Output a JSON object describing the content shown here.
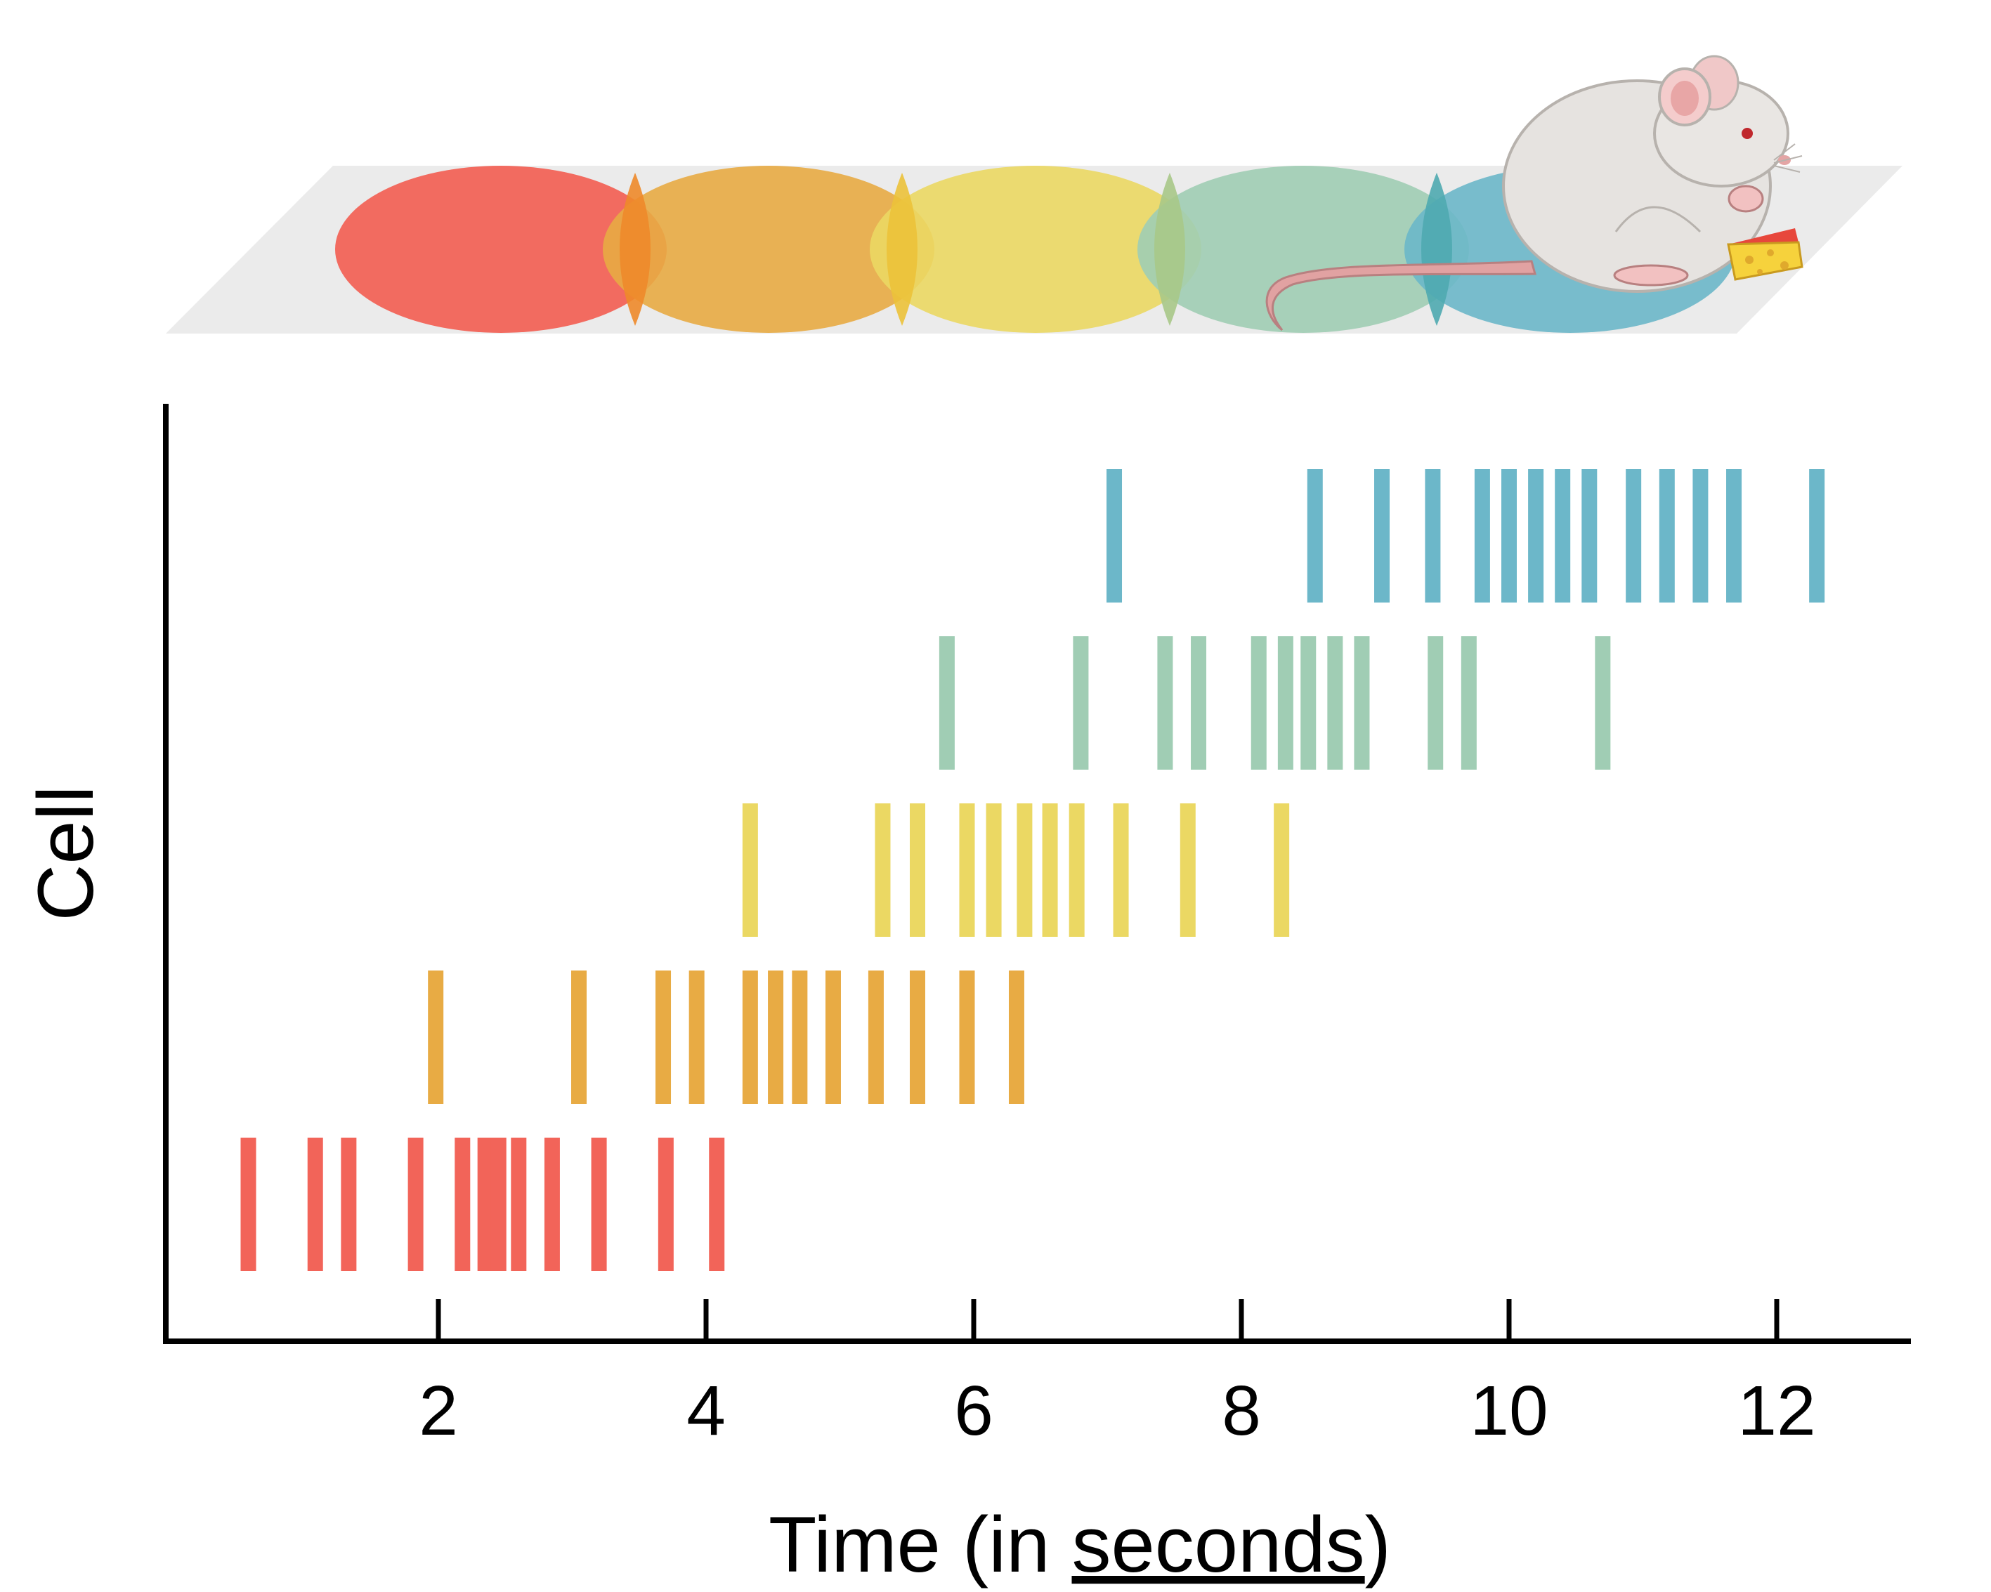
{
  "chart_data": {
    "type": "raster",
    "xlabel_prefix": "Time (in ",
    "xlabel_underlined": "seconds",
    "xlabel_suffix": ")",
    "ylabel": "Cell",
    "xlim": [
      0,
      13
    ],
    "xticks": [
      2,
      4,
      6,
      8,
      10,
      12
    ],
    "xtick_labels": [
      "2",
      "4",
      "6",
      "8",
      "10",
      "12"
    ],
    "grid": false,
    "legend": "none",
    "zone_colors": [
      "#f26459",
      "#e8ab44",
      "#ebd863",
      "#a0cdb4",
      "#6cb7c9"
    ],
    "series": [
      {
        "color": "#f26459",
        "spikes": [
          0.58,
          1.08,
          1.33,
          1.83,
          2.18,
          2.35,
          2.45,
          2.6,
          2.85,
          3.2,
          3.7,
          4.08
        ]
      },
      {
        "color": "#e8ab44",
        "spikes": [
          1.98,
          3.05,
          3.68,
          3.93,
          4.33,
          4.52,
          4.7,
          4.95,
          5.27,
          5.58,
          5.95,
          6.32
        ]
      },
      {
        "color": "#ebd863",
        "spikes": [
          4.33,
          5.32,
          5.58,
          5.95,
          6.15,
          6.38,
          6.57,
          6.77,
          7.1,
          7.6,
          8.3
        ]
      },
      {
        "color": "#a0cdb4",
        "spikes": [
          5.8,
          6.8,
          7.43,
          7.68,
          8.13,
          8.33,
          8.5,
          8.7,
          8.9,
          9.45,
          9.7,
          10.7
        ]
      },
      {
        "color": "#6cb7c9",
        "spikes": [
          7.05,
          8.55,
          9.05,
          9.43,
          9.8,
          10.0,
          10.2,
          10.4,
          10.6,
          10.93,
          11.18,
          11.43,
          11.68,
          12.3
        ]
      }
    ]
  }
}
